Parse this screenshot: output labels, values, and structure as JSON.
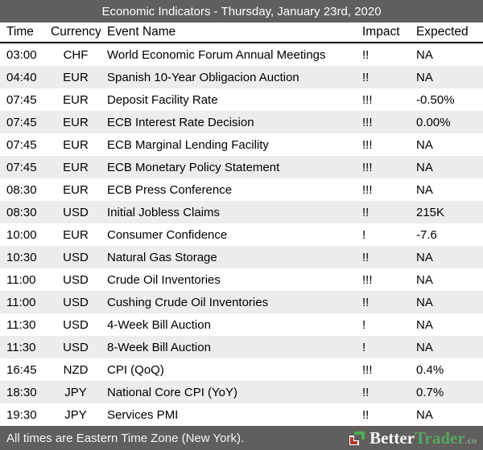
{
  "title_bar": {
    "title": "Economic Indicators - Thursday, January 23rd, 2020"
  },
  "table": {
    "columns": [
      "Time",
      "Currency",
      "Event Name",
      "Impact",
      "Expected"
    ],
    "rows": [
      {
        "time": "03:00",
        "currency": "CHF",
        "event": "World Economic Forum Annual Meetings",
        "impact": "!!",
        "expected": "NA"
      },
      {
        "time": "04:40",
        "currency": "EUR",
        "event": "Spanish 10-Year Obligacion Auction",
        "impact": "!!",
        "expected": "NA"
      },
      {
        "time": "07:45",
        "currency": "EUR",
        "event": "Deposit Facility Rate",
        "impact": "!!!",
        "expected": "-0.50%"
      },
      {
        "time": "07:45",
        "currency": "EUR",
        "event": "ECB Interest Rate Decision",
        "impact": "!!!",
        "expected": "0.00%"
      },
      {
        "time": "07:45",
        "currency": "EUR",
        "event": "ECB Marginal Lending Facility",
        "impact": "!!!",
        "expected": "NA"
      },
      {
        "time": "07:45",
        "currency": "EUR",
        "event": "ECB Monetary Policy Statement",
        "impact": "!!!",
        "expected": "NA"
      },
      {
        "time": "08:30",
        "currency": "EUR",
        "event": "ECB Press Conference",
        "impact": "!!!",
        "expected": "NA"
      },
      {
        "time": "08:30",
        "currency": "USD",
        "event": "Initial Jobless Claims",
        "impact": "!!",
        "expected": "215K"
      },
      {
        "time": "10:00",
        "currency": "EUR",
        "event": "Consumer Confidence",
        "impact": "!",
        "expected": "-7.6"
      },
      {
        "time": "10:30",
        "currency": "USD",
        "event": "Natural Gas Storage",
        "impact": "!!",
        "expected": "NA"
      },
      {
        "time": "11:00",
        "currency": "USD",
        "event": "Crude Oil Inventories",
        "impact": "!!!",
        "expected": "NA"
      },
      {
        "time": "11:00",
        "currency": "USD",
        "event": "Cushing Crude Oil Inventories",
        "impact": "!!",
        "expected": "NA"
      },
      {
        "time": "11:30",
        "currency": "USD",
        "event": "4-Week Bill Auction",
        "impact": "!",
        "expected": "NA"
      },
      {
        "time": "11:30",
        "currency": "USD",
        "event": "8-Week Bill Auction",
        "impact": "!",
        "expected": "NA"
      },
      {
        "time": "16:45",
        "currency": "NZD",
        "event": "CPI (QoQ)",
        "impact": "!!!",
        "expected": "0.4%"
      },
      {
        "time": "18:30",
        "currency": "JPY",
        "event": "National Core CPI (YoY)",
        "impact": "!!",
        "expected": "0.7%"
      },
      {
        "time": "19:30",
        "currency": "JPY",
        "event": "Services PMI",
        "impact": "!!",
        "expected": "NA"
      }
    ]
  },
  "footer": {
    "note": "All times are Eastern Time Zone (New York).",
    "brand": {
      "icon": "bettertrader-logo-icon",
      "name_first": "Better",
      "name_second": "Trader",
      "tld": ".co"
    }
  },
  "colors": {
    "bar_background": "#615e5e",
    "alt_row_background": "#ededed",
    "header_divider": "#000000",
    "brand_green": "#4caf50",
    "brand_red": "#b73a32",
    "brand_text_green": "#55a85f"
  }
}
